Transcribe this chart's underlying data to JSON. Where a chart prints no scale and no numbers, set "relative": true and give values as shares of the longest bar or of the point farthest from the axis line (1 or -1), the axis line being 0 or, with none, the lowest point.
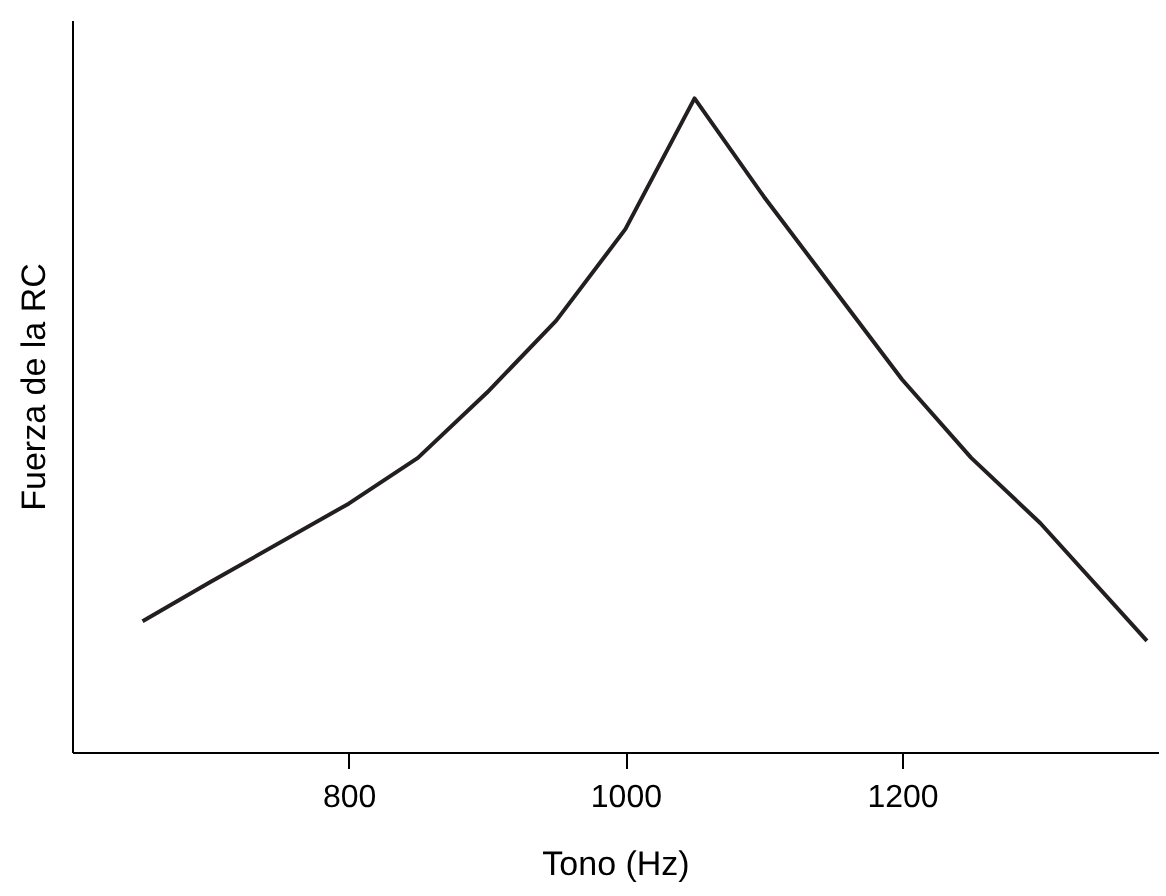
{
  "chart_data": {
    "type": "line",
    "xlabel": "Tono (Hz)",
    "ylabel": "Fuerza de la RC",
    "relative": true,
    "xlim": [
      600,
      1385
    ],
    "xticks": [
      800,
      {
        "value": 1000,
        "label": "1000"
      },
      {
        "value": 1200,
        "label": "1200"
      }
    ],
    "grid": false,
    "marker": "none",
    "line_style": "solid",
    "series": [
      {
        "color": "#231f20",
        "x": [
          651,
          700,
          800,
          850,
          900,
          950,
          1000,
          1050,
          1100,
          1150,
          1200,
          1250,
          1300,
          1377
        ],
        "values": [
          0.2,
          0.26,
          0.38,
          0.45,
          0.55,
          0.66,
          0.8,
          1,
          0.85,
          0.71,
          0.57,
          0.45,
          0.35,
          0.17
        ]
      }
    ]
  }
}
